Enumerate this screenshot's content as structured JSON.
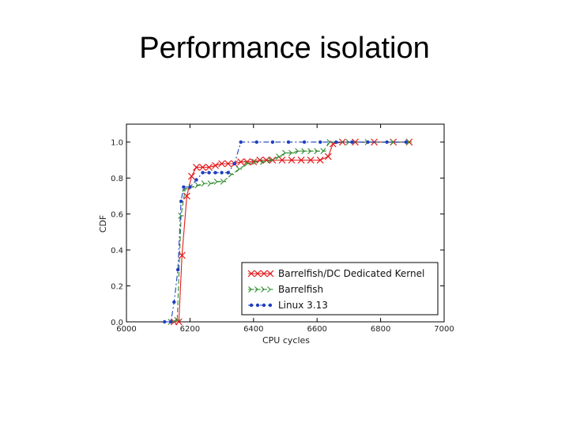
{
  "slide": {
    "title": "Performance isolation"
  },
  "chart_data": {
    "type": "line",
    "xlabel": "CPU cycles",
    "ylabel": "CDF",
    "xlim": [
      6000,
      7000
    ],
    "ylim": [
      0.0,
      1.1
    ],
    "xticks": [
      "6000",
      "6200",
      "6400",
      "6600",
      "6800",
      "7000"
    ],
    "yticks": [
      "0.0",
      "0.2",
      "0.4",
      "0.6",
      "0.8",
      "1.0"
    ],
    "legend_position": "lower-right",
    "grid": false,
    "series": [
      {
        "name": "Barrelfish/DC Dedicated Kernel",
        "color": "#e41a1c",
        "marker": "x",
        "line": "solid",
        "points": [
          [
            6150,
            0.0
          ],
          [
            6165,
            0.0
          ],
          [
            6175,
            0.37
          ],
          [
            6190,
            0.7
          ],
          [
            6205,
            0.81
          ],
          [
            6220,
            0.86
          ],
          [
            6240,
            0.86
          ],
          [
            6260,
            0.86
          ],
          [
            6280,
            0.87
          ],
          [
            6300,
            0.88
          ],
          [
            6320,
            0.88
          ],
          [
            6340,
            0.88
          ],
          [
            6360,
            0.89
          ],
          [
            6380,
            0.89
          ],
          [
            6400,
            0.89
          ],
          [
            6420,
            0.9
          ],
          [
            6440,
            0.9
          ],
          [
            6460,
            0.9
          ],
          [
            6490,
            0.9
          ],
          [
            6520,
            0.9
          ],
          [
            6550,
            0.9
          ],
          [
            6580,
            0.9
          ],
          [
            6610,
            0.9
          ],
          [
            6635,
            0.92
          ],
          [
            6650,
            0.99
          ],
          [
            6680,
            1.0
          ],
          [
            6720,
            1.0
          ],
          [
            6780,
            1.0
          ],
          [
            6840,
            1.0
          ],
          [
            6890,
            1.0
          ]
        ]
      },
      {
        "name": "Barrelfish",
        "color": "#2e8b2e",
        "marker": "tri",
        "line": "dashed",
        "points": [
          [
            6140,
            0.0
          ],
          [
            6160,
            0.01
          ],
          [
            6172,
            0.59
          ],
          [
            6185,
            0.74
          ],
          [
            6205,
            0.75
          ],
          [
            6225,
            0.76
          ],
          [
            6245,
            0.77
          ],
          [
            6265,
            0.77
          ],
          [
            6285,
            0.78
          ],
          [
            6305,
            0.78
          ],
          [
            6330,
            0.82
          ],
          [
            6355,
            0.85
          ],
          [
            6380,
            0.88
          ],
          [
            6405,
            0.89
          ],
          [
            6430,
            0.89
          ],
          [
            6455,
            0.9
          ],
          [
            6480,
            0.92
          ],
          [
            6500,
            0.94
          ],
          [
            6520,
            0.94
          ],
          [
            6540,
            0.95
          ],
          [
            6560,
            0.95
          ],
          [
            6580,
            0.95
          ],
          [
            6600,
            0.95
          ],
          [
            6620,
            0.95
          ],
          [
            6640,
            1.0
          ],
          [
            6700,
            1.0
          ],
          [
            6760,
            1.0
          ],
          [
            6840,
            1.0
          ],
          [
            6890,
            1.0
          ]
        ]
      },
      {
        "name": "Linux 3.13",
        "color": "#1f3fbf",
        "marker": "dot",
        "line": "dashdot",
        "points": [
          [
            6120,
            0.0
          ],
          [
            6140,
            0.0
          ],
          [
            6150,
            0.11
          ],
          [
            6162,
            0.29
          ],
          [
            6172,
            0.67
          ],
          [
            6180,
            0.75
          ],
          [
            6200,
            0.75
          ],
          [
            6220,
            0.79
          ],
          [
            6240,
            0.83
          ],
          [
            6260,
            0.83
          ],
          [
            6280,
            0.83
          ],
          [
            6300,
            0.83
          ],
          [
            6320,
            0.83
          ],
          [
            6340,
            0.88
          ],
          [
            6360,
            1.0
          ],
          [
            6410,
            1.0
          ],
          [
            6460,
            1.0
          ],
          [
            6510,
            1.0
          ],
          [
            6560,
            1.0
          ],
          [
            6610,
            1.0
          ],
          [
            6660,
            1.0
          ],
          [
            6710,
            1.0
          ],
          [
            6760,
            1.0
          ],
          [
            6820,
            1.0
          ],
          [
            6880,
            1.0
          ]
        ]
      }
    ]
  }
}
